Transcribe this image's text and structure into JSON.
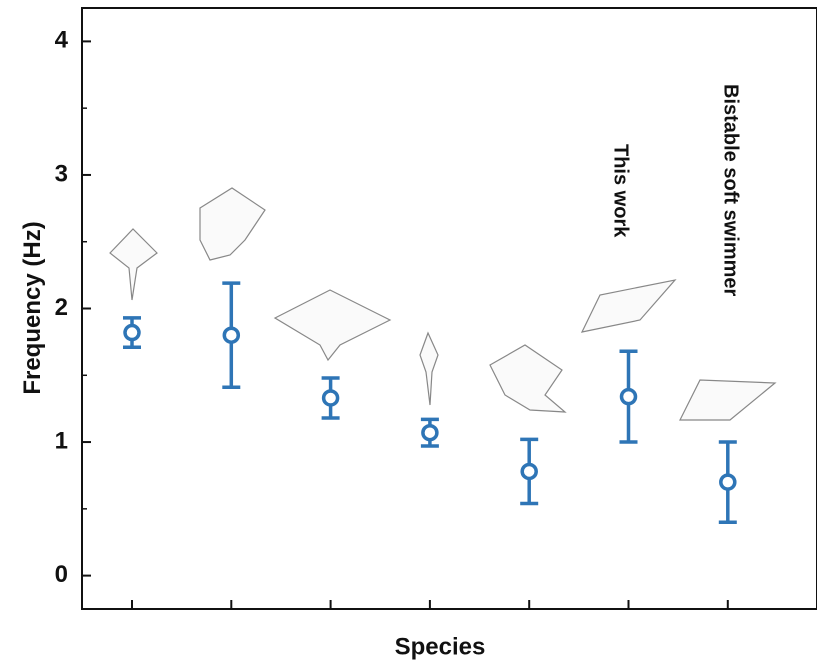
{
  "chart_data": {
    "type": "errorbar",
    "x_label": "Species",
    "y_label": "Frequency (Hz)",
    "categories": [
      null,
      null,
      null,
      null,
      null,
      null,
      null
    ],
    "values": [
      1.82,
      1.8,
      1.33,
      1.07,
      0.78,
      1.34,
      0.7
    ],
    "errors": [
      0.11,
      0.39,
      0.15,
      0.1,
      0.24,
      0.34,
      0.3
    ],
    "color": "#2e75b6",
    "ylim": [
      -0.25,
      4.25
    ],
    "yticks": [
      0,
      1,
      2,
      3,
      4
    ],
    "grid": false,
    "annotations": [
      "This work",
      "Bistable soft swimmer"
    ]
  }
}
